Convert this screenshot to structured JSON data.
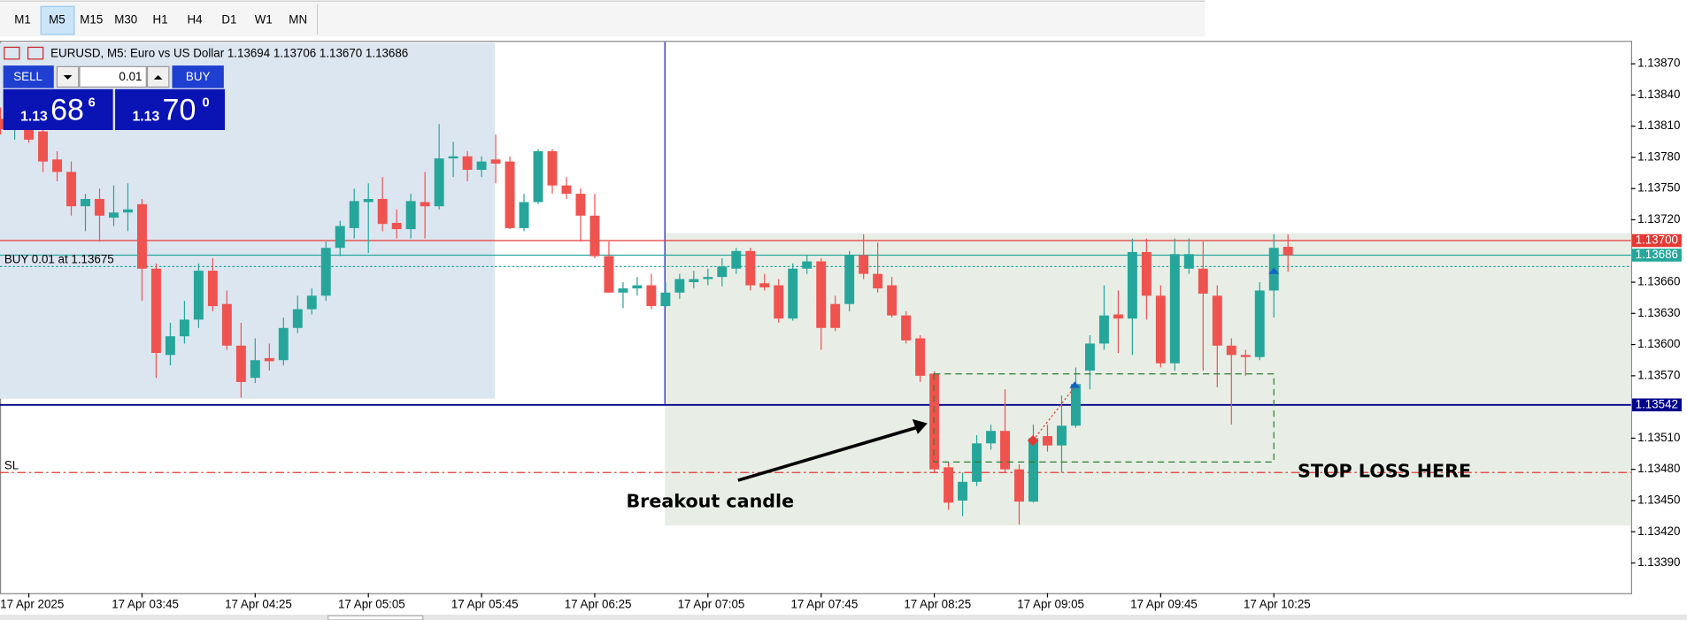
{
  "toolbar": {
    "timeframes": [
      "M1",
      "M5",
      "M15",
      "M30",
      "H1",
      "H4",
      "D1",
      "W1",
      "MN"
    ],
    "active": 1
  },
  "trade_panel": {
    "sell": "SELL",
    "lot": "0.01",
    "buy": "BUY",
    "bid": {
      "base": "1.13",
      "big": "68",
      "small": "6"
    },
    "ask": {
      "base": "1.13",
      "big": "70",
      "small": "0"
    }
  },
  "chart_data": {
    "type": "candlestick",
    "header": "EURUSD, M5:  Euro vs US Dollar  1.13694 1.13706 1.13670 1.13686",
    "categories": [
      null,
      null,
      "17 Apr 2025",
      null,
      null,
      null,
      null,
      null,
      null,
      null,
      "17 Apr 03:45",
      null,
      null,
      null,
      null,
      null,
      null,
      null,
      "17 Apr 04:25",
      null,
      null,
      null,
      null,
      null,
      null,
      null,
      "17 Apr 05:05",
      null,
      null,
      null,
      null,
      null,
      null,
      null,
      "17 Apr 05:45",
      null,
      null,
      null,
      null,
      null,
      null,
      null,
      "17 Apr 06:25",
      null,
      null,
      null,
      null,
      null,
      null,
      null,
      "17 Apr 07:05",
      null,
      null,
      null,
      null,
      null,
      null,
      null,
      "17 Apr 07:45",
      null,
      null,
      null,
      null,
      null,
      null,
      null,
      "17 Apr 08:25",
      null,
      null,
      null,
      null,
      null,
      null,
      null,
      "17 Apr 09:05",
      null,
      null,
      null,
      null,
      null,
      null,
      null,
      "17 Apr 09:45",
      null,
      null,
      null,
      null,
      null,
      null,
      null,
      "17 Apr 10:25",
      null
    ],
    "open": [
      1.13817,
      1.13809,
      1.13807,
      1.13805,
      1.13778,
      1.13766,
      1.13733,
      1.1374,
      1.13722,
      1.13727,
      1.13735,
      1.13673,
      1.1359,
      1.13608,
      1.13624,
      1.13671,
      1.13639,
      1.13599,
      1.13568,
      1.13587,
      1.13585,
      1.13616,
      1.13634,
      1.13647,
      1.13693,
      1.13712,
      1.13737,
      1.1374,
      1.13717,
      1.13711,
      1.13737,
      1.13733,
      1.13779,
      1.13781,
      1.13768,
      1.13778,
      1.13776,
      1.13712,
      1.13737,
      1.13786,
      1.13753,
      1.13745,
      1.13724,
      1.13685,
      1.1365,
      1.13654,
      1.13657,
      1.13637,
      1.1365,
      1.1366,
      1.13663,
      1.13665,
      1.13673,
      1.1369,
      1.13659,
      1.13657,
      1.13625,
      1.13673,
      1.1368,
      1.13639,
      1.13639,
      1.13686,
      1.13668,
      1.13657,
      1.13628,
      1.13606,
      1.13572,
      1.13482,
      1.1345,
      1.13468,
      1.13505,
      1.13517,
      1.1348,
      1.13449,
      1.13512,
      1.13503,
      1.13522,
      1.13575,
      1.13601,
      1.13629,
      1.13625,
      1.13689,
      1.13647,
      1.13582,
      1.13673,
      1.13673,
      1.13647,
      1.13599,
      1.1359,
      1.13588,
      1.13652,
      1.13694
    ],
    "high": [
      1.13828,
      1.13823,
      1.13817,
      1.13812,
      1.13786,
      1.13776,
      1.13745,
      1.1375,
      1.13753,
      1.13755,
      1.1374,
      1.13678,
      1.13621,
      1.13642,
      1.13678,
      1.13683,
      1.13652,
      1.13621,
      1.13606,
      1.13601,
      1.13626,
      1.13647,
      1.13654,
      1.13699,
      1.13719,
      1.1375,
      1.13755,
      1.13761,
      1.1373,
      1.13745,
      1.13766,
      1.13812,
      1.13795,
      1.13786,
      1.13781,
      1.13802,
      1.13781,
      1.13745,
      1.13788,
      1.13788,
      1.13761,
      1.1375,
      1.13745,
      1.13699,
      1.1366,
      1.13665,
      1.13668,
      1.1366,
      1.13668,
      1.13671,
      1.13673,
      1.13683,
      1.13693,
      1.13693,
      1.13668,
      1.13663,
      1.13678,
      1.13686,
      1.13683,
      1.13647,
      1.1369,
      1.13706,
      1.13698,
      1.13665,
      1.13632,
      1.13609,
      1.13574,
      1.13487,
      1.13477,
      1.13513,
      1.13523,
      1.13557,
      1.13485,
      1.13523,
      1.13523,
      1.13551,
      1.13578,
      1.13609,
      1.13657,
      1.13652,
      1.13702,
      1.13702,
      1.13657,
      1.13702,
      1.13702,
      1.13699,
      1.13657,
      1.13606,
      1.13595,
      1.1366,
      1.13706,
      1.13706
    ],
    "low": [
      1.13802,
      1.13797,
      1.13794,
      1.13766,
      1.13757,
      1.13724,
      1.13709,
      1.13699,
      1.13714,
      1.13709,
      1.13642,
      1.13568,
      1.1358,
      1.13601,
      1.13616,
      1.13632,
      1.13595,
      1.13549,
      1.13563,
      1.13575,
      1.1358,
      1.13611,
      1.13629,
      1.13642,
      1.13685,
      1.13702,
      1.13688,
      1.13709,
      1.13702,
      1.13702,
      1.13702,
      1.1373,
      1.13761,
      1.13757,
      1.13761,
      1.13755,
      1.13711,
      1.13709,
      1.13735,
      1.13745,
      1.1374,
      1.13699,
      1.13683,
      1.1365,
      1.13635,
      1.13647,
      1.13634,
      1.13636,
      1.13644,
      1.13654,
      1.13657,
      1.13656,
      1.13668,
      1.13652,
      1.13652,
      1.13621,
      1.13623,
      1.13668,
      1.13595,
      1.13613,
      1.13632,
      1.13663,
      1.1365,
      1.13626,
      1.13601,
      1.13564,
      1.13477,
      1.13441,
      1.13435,
      1.13464,
      1.13499,
      1.13477,
      1.13427,
      1.13448,
      1.13497,
      1.13477,
      1.1352,
      1.13557,
      1.13595,
      1.13592,
      1.1359,
      1.13624,
      1.13578,
      1.13575,
      1.13668,
      1.13575,
      1.13559,
      1.13523,
      1.1357,
      1.13585,
      1.13626,
      1.1367
    ],
    "close": [
      1.13807,
      1.13815,
      1.13797,
      1.13776,
      1.13766,
      1.13733,
      1.1374,
      1.13724,
      1.13727,
      1.1373,
      1.13673,
      1.13592,
      1.13608,
      1.13624,
      1.13671,
      1.13637,
      1.13599,
      1.13564,
      1.13585,
      1.13584,
      1.13616,
      1.13634,
      1.13647,
      1.13693,
      1.13714,
      1.13738,
      1.1374,
      1.13716,
      1.13711,
      1.13738,
      1.13733,
      1.13779,
      1.13781,
      1.13768,
      1.13776,
      1.13774,
      1.13712,
      1.13737,
      1.13786,
      1.13753,
      1.13745,
      1.13724,
      1.13685,
      1.1365,
      1.13654,
      1.13657,
      1.13637,
      1.1365,
      1.13663,
      1.13663,
      1.13665,
      1.13675,
      1.1369,
      1.13657,
      1.13655,
      1.13625,
      1.13673,
      1.1368,
      1.13616,
      1.13616,
      1.13686,
      1.13668,
      1.13654,
      1.13628,
      1.13604,
      1.1357,
      1.1348,
      1.13448,
      1.13468,
      1.13505,
      1.13517,
      1.1348,
      1.13449,
      1.1351,
      1.13503,
      1.13522,
      1.13562,
      1.13601,
      1.13628,
      1.13625,
      1.13689,
      1.13647,
      1.13582,
      1.13687,
      1.13687,
      1.13649,
      1.13599,
      1.1359,
      1.13588,
      1.13652,
      1.13693,
      1.13686
    ],
    "up_color": "#26a69a",
    "down_color": "#ef5350",
    "ylim": [
      1.13361,
      1.1389
    ],
    "yticks": [
      {
        "value": 1.1387,
        "label": "1.13870"
      },
      {
        "value": 1.1384,
        "label": "1.13840"
      },
      {
        "value": 1.1381,
        "label": "1.13810"
      },
      {
        "value": 1.1378,
        "label": "1.13780"
      },
      {
        "value": 1.1375,
        "label": "1.13750"
      },
      {
        "value": 1.1372,
        "label": "1.13720"
      },
      {
        "value": 1.1366,
        "label": "1.13660"
      },
      {
        "value": 1.1363,
        "label": "1.13630"
      },
      {
        "value": 1.136,
        "label": "1.13600"
      },
      {
        "value": 1.1357,
        "label": "1.13570"
      },
      {
        "value": 1.1351,
        "label": "1.13510"
      },
      {
        "value": 1.1348,
        "label": "1.13480"
      },
      {
        "value": 1.1345,
        "label": "1.13450"
      },
      {
        "value": 1.1342,
        "label": "1.13420"
      },
      {
        "value": 1.1339,
        "label": "1.13390"
      }
    ],
    "grid": false,
    "levels": [
      {
        "value": 1.137,
        "label": "1.13700",
        "color": "#e53935"
      },
      {
        "value": 1.13686,
        "label": "1.13686",
        "color": "#26a69a"
      },
      {
        "value": 1.13542,
        "label": "1.13542",
        "color": "#00008b"
      }
    ],
    "order_lines": [
      {
        "value": 1.13675,
        "text": "BUY 0.01 at 1.13675",
        "color": "#26a69a",
        "style": "dotted"
      },
      {
        "value": 1.13477,
        "text": "SL",
        "color": "#e53935",
        "style": "dashdot"
      }
    ],
    "annotations": [
      "Breakout candle",
      "STOP LOSS HERE"
    ]
  }
}
